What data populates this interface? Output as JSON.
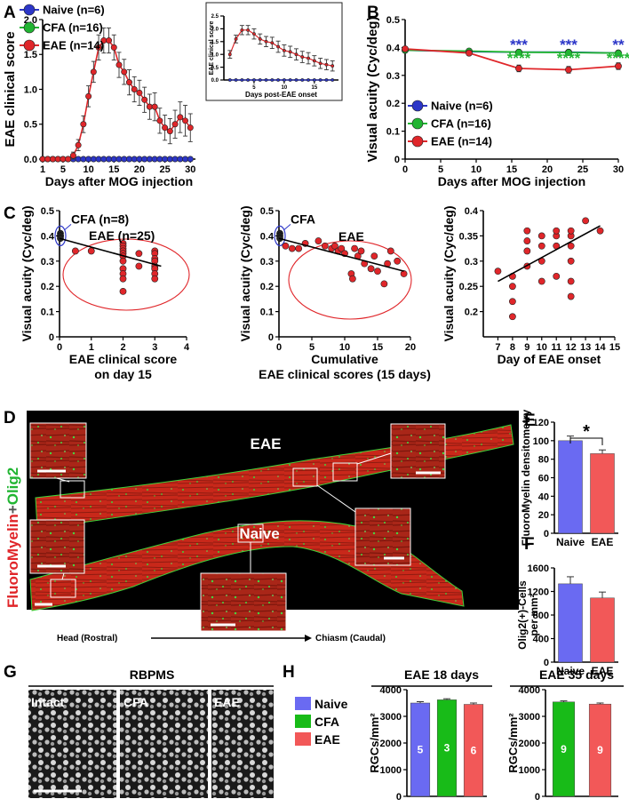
{
  "colors": {
    "naive": "#2c36c8",
    "cfa": "#21b532",
    "eae": "#e0262a",
    "bar_naive": "#6a6af2",
    "bar_cfa": "#18bb18",
    "bar_eae": "#f25858",
    "tissue_red": "#c8281a",
    "tissue_green": "#3fd13a"
  },
  "panel_letters": {
    "A": "A",
    "B": "B",
    "C": "C",
    "D": "D",
    "E": "E",
    "F": "F",
    "G": "G",
    "H": "H"
  },
  "chart_data": [
    {
      "id": "A",
      "type": "line",
      "title": "",
      "xlabel": "Days after MOG injection",
      "ylabel": "EAE clinical score",
      "xlim": [
        1,
        31
      ],
      "ylim": [
        0,
        2.0
      ],
      "xticks": [
        1,
        5,
        10,
        15,
        20,
        25,
        30
      ],
      "yticks": [
        0.0,
        0.5,
        1.0,
        1.5,
        2.0
      ],
      "ytick_labels": [
        "0.0",
        "0.5",
        "1.0",
        "1.5",
        "2.0"
      ],
      "legend": [
        {
          "name": "Naive (n=6)",
          "color": "naive"
        },
        {
          "name": "CFA (n=16)",
          "color": "cfa"
        },
        {
          "name": "EAE (n=14)",
          "color": "eae"
        }
      ],
      "x": [
        1,
        2,
        3,
        4,
        5,
        6,
        7,
        8,
        9,
        10,
        11,
        12,
        13,
        14,
        15,
        16,
        17,
        18,
        19,
        20,
        21,
        22,
        23,
        24,
        25,
        26,
        27,
        28,
        29,
        30
      ],
      "series": [
        {
          "name": "Naive",
          "color": "naive",
          "values": [
            0,
            0,
            0,
            0,
            0,
            0,
            0,
            0,
            0,
            0,
            0,
            0,
            0,
            0,
            0,
            0,
            0,
            0,
            0,
            0,
            0,
            0,
            0,
            0,
            0,
            0,
            0,
            0,
            0,
            0
          ],
          "err": []
        },
        {
          "name": "EAE",
          "color": "eae",
          "values": [
            0,
            0,
            0,
            0,
            0,
            0,
            0.05,
            0.2,
            0.5,
            0.9,
            1.25,
            1.6,
            1.7,
            1.7,
            1.6,
            1.35,
            1.25,
            1.1,
            1.0,
            0.95,
            0.85,
            0.75,
            0.75,
            0.55,
            0.45,
            0.4,
            0.5,
            0.6,
            0.55,
            0.45
          ],
          "err": [
            0,
            0,
            0,
            0,
            0,
            0,
            0.05,
            0.08,
            0.12,
            0.15,
            0.15,
            0.18,
            0.18,
            0.18,
            0.18,
            0.18,
            0.18,
            0.18,
            0.18,
            0.18,
            0.18,
            0.18,
            0.2,
            0.18,
            0.18,
            0.18,
            0.2,
            0.22,
            0.22,
            0.2
          ]
        }
      ]
    },
    {
      "id": "A_inset",
      "type": "line",
      "title": "",
      "xlabel": "Days post-EAE onset",
      "ylabel": "EAE clinical score",
      "xlim": [
        0,
        19
      ],
      "ylim": [
        0,
        2.5
      ],
      "xticks": [
        5,
        10,
        15
      ],
      "yticks": [
        0.0,
        0.5,
        1.0,
        1.5,
        2.0,
        2.5
      ],
      "ytick_labels": [
        "0.0",
        "0.5",
        "1.0",
        "1.5",
        "2.0",
        "2.5"
      ],
      "x": [
        1,
        2,
        3,
        4,
        5,
        6,
        7,
        8,
        9,
        10,
        11,
        12,
        13,
        14,
        15,
        16,
        17,
        18
      ],
      "series": [
        {
          "name": "Naive",
          "color": "naive",
          "values": [
            0,
            0,
            0,
            0,
            0,
            0,
            0,
            0,
            0,
            0,
            0,
            0,
            0,
            0,
            0,
            0,
            0,
            0
          ],
          "err": []
        },
        {
          "name": "EAE",
          "color": "eae",
          "values": [
            1.0,
            1.6,
            1.95,
            1.95,
            1.8,
            1.6,
            1.5,
            1.45,
            1.3,
            1.15,
            1.1,
            1.0,
            0.9,
            0.85,
            0.75,
            0.65,
            0.6,
            0.55
          ],
          "err": [
            0.15,
            0.15,
            0.18,
            0.18,
            0.2,
            0.2,
            0.2,
            0.22,
            0.22,
            0.22,
            0.22,
            0.22,
            0.22,
            0.22,
            0.2,
            0.2,
            0.2,
            0.2
          ]
        }
      ]
    },
    {
      "id": "B",
      "type": "line",
      "title": "",
      "xlabel": "Days after MOG injection",
      "ylabel": "Visual acuity (Cyc/deg)",
      "xlim": [
        0,
        30
      ],
      "ylim": [
        0,
        0.5
      ],
      "xticks": [
        0,
        5,
        10,
        15,
        20,
        25,
        30
      ],
      "yticks": [
        0.0,
        0.1,
        0.2,
        0.3,
        0.4,
        0.5
      ],
      "ytick_labels": [
        "0",
        "0.1",
        "0.2",
        "0.3",
        "0.4",
        "0.5"
      ],
      "legend": [
        {
          "name": "Naive (n=6)",
          "color": "naive"
        },
        {
          "name": "CFA (n=16)",
          "color": "cfa"
        },
        {
          "name": "EAE (n=14)",
          "color": "eae"
        }
      ],
      "x": [
        0,
        9,
        16,
        23,
        30
      ],
      "series": [
        {
          "name": "Naive",
          "color": "naive",
          "values": [
            0.39,
            0.385,
            0.383,
            0.383,
            0.38
          ],
          "err": []
        },
        {
          "name": "CFA",
          "color": "cfa",
          "values": [
            0.39,
            0.387,
            0.383,
            0.382,
            0.38
          ],
          "err": []
        },
        {
          "name": "EAE",
          "color": "eae",
          "values": [
            0.395,
            0.38,
            0.325,
            0.32,
            0.333
          ],
          "err": [
            0.005,
            0.005,
            0.012,
            0.012,
            0.012
          ]
        }
      ],
      "annotations": [
        {
          "x": 16,
          "text": "***",
          "color": "naive",
          "row": 1
        },
        {
          "x": 16,
          "text": "****",
          "color": "cfa",
          "row": 2
        },
        {
          "x": 23,
          "text": "***",
          "color": "naive",
          "row": 1
        },
        {
          "x": 23,
          "text": "****",
          "color": "cfa",
          "row": 2
        },
        {
          "x": 30,
          "text": "**",
          "color": "naive",
          "row": 1
        },
        {
          "x": 30,
          "text": "****",
          "color": "cfa",
          "row": 2
        }
      ]
    },
    {
      "id": "C1",
      "type": "scatter",
      "title": "",
      "xlabel": "EAE clinical score",
      "xlabel2": "on day 15",
      "ylabel": "Visual acuity (Cyc/deg)",
      "xlim": [
        0,
        4
      ],
      "ylim": [
        0,
        0.5
      ],
      "xticks": [
        0,
        1,
        2,
        3,
        4
      ],
      "yticks": [
        0.0,
        0.1,
        0.2,
        0.3,
        0.4,
        0.5
      ],
      "ytick_labels": [
        "0",
        "0.1",
        "0.2",
        "0.3",
        "0.4",
        "0.5"
      ],
      "points": [
        [
          0.5,
          0.34
        ],
        [
          1.0,
          0.34
        ],
        [
          2.0,
          0.37
        ],
        [
          2.0,
          0.36
        ],
        [
          2.0,
          0.35
        ],
        [
          2.0,
          0.34
        ],
        [
          2.0,
          0.33
        ],
        [
          2.0,
          0.32
        ],
        [
          2.0,
          0.3
        ],
        [
          2.0,
          0.27
        ],
        [
          2.0,
          0.25
        ],
        [
          2.0,
          0.23
        ],
        [
          2.0,
          0.18
        ],
        [
          2.5,
          0.33
        ],
        [
          2.5,
          0.28
        ],
        [
          3.0,
          0.34
        ],
        [
          3.0,
          0.33
        ],
        [
          3.0,
          0.31
        ],
        [
          3.0,
          0.3
        ],
        [
          3.0,
          0.28
        ],
        [
          3.0,
          0.27
        ],
        [
          3.0,
          0.25
        ],
        [
          3.0,
          0.23
        ]
      ],
      "cfa_points": [
        [
          0,
          0.41
        ],
        [
          0,
          0.4
        ],
        [
          0,
          0.4
        ],
        [
          0,
          0.39
        ]
      ],
      "trend": [
        [
          0,
          0.39
        ],
        [
          3.2,
          0.28
        ]
      ],
      "labels": {
        "cfa": "CFA (n=8)",
        "eae": "EAE (n=25)"
      }
    },
    {
      "id": "C2",
      "type": "scatter",
      "title": "",
      "xlabel": "Cumulative",
      "xlabel2": "EAE clinical scores (15 days)",
      "ylabel": "Visual acuity (Cyc/deg)",
      "xlim": [
        0,
        20
      ],
      "ylim": [
        0,
        0.5
      ],
      "xticks": [
        0,
        5,
        10,
        15,
        20
      ],
      "yticks": [
        0.0,
        0.1,
        0.2,
        0.3,
        0.4,
        0.5
      ],
      "ytick_labels": [
        "0",
        "0.1",
        "0.2",
        "0.3",
        "0.4",
        "0.5"
      ],
      "points": [
        [
          1,
          0.36
        ],
        [
          2,
          0.35
        ],
        [
          3,
          0.35
        ],
        [
          4,
          0.37
        ],
        [
          6,
          0.38
        ],
        [
          7,
          0.36
        ],
        [
          8,
          0.35
        ],
        [
          8.5,
          0.36
        ],
        [
          9,
          0.34
        ],
        [
          9.5,
          0.35
        ],
        [
          10,
          0.33
        ],
        [
          11,
          0.25
        ],
        [
          11.2,
          0.23
        ],
        [
          11.5,
          0.35
        ],
        [
          12,
          0.32
        ],
        [
          12.5,
          0.34
        ],
        [
          13,
          0.29
        ],
        [
          14,
          0.27
        ],
        [
          14.5,
          0.32
        ],
        [
          15,
          0.26
        ],
        [
          16,
          0.21
        ],
        [
          16.5,
          0.29
        ],
        [
          17,
          0.34
        ],
        [
          18,
          0.3
        ],
        [
          19,
          0.25
        ]
      ],
      "cfa_points": [
        [
          0,
          0.41
        ],
        [
          0,
          0.4
        ],
        [
          0,
          0.39
        ]
      ],
      "trend": [
        [
          0,
          0.39
        ],
        [
          19,
          0.26
        ]
      ],
      "labels": {
        "cfa": "CFA",
        "eae": "EAE"
      }
    },
    {
      "id": "C3",
      "type": "scatter",
      "title": "",
      "xlabel": "Day of EAE onset",
      "ylabel": "Visual acuity (Cyc/deg)",
      "xlim": [
        6,
        15
      ],
      "ylim": [
        0.15,
        0.4
      ],
      "xticks": [
        7,
        8,
        9,
        10,
        11,
        12,
        13,
        14,
        15
      ],
      "yticks": [
        0.2,
        0.25,
        0.3,
        0.35,
        0.4
      ],
      "ytick_labels": [
        "0.2",
        "0.25",
        "0.3",
        "0.35",
        "0.4"
      ],
      "points": [
        [
          7,
          0.28
        ],
        [
          8,
          0.25
        ],
        [
          8,
          0.22
        ],
        [
          8,
          0.19
        ],
        [
          8,
          0.27
        ],
        [
          9,
          0.34
        ],
        [
          9,
          0.32
        ],
        [
          9,
          0.36
        ],
        [
          9,
          0.29
        ],
        [
          10,
          0.35
        ],
        [
          10,
          0.33
        ],
        [
          10,
          0.3
        ],
        [
          10,
          0.26
        ],
        [
          11,
          0.35
        ],
        [
          11,
          0.36
        ],
        [
          11,
          0.33
        ],
        [
          11,
          0.27
        ],
        [
          12,
          0.33
        ],
        [
          12,
          0.35
        ],
        [
          12,
          0.36
        ],
        [
          12,
          0.3
        ],
        [
          12,
          0.26
        ],
        [
          12,
          0.23
        ],
        [
          13,
          0.38
        ],
        [
          14,
          0.36
        ]
      ],
      "trend": [
        [
          7,
          0.26
        ],
        [
          14,
          0.37
        ]
      ]
    },
    {
      "id": "E",
      "type": "bar",
      "title": "",
      "ylabel": "FluoroMyelin densitometry",
      "categories": [
        "Naive",
        "EAE"
      ],
      "values": [
        100,
        86
      ],
      "err": [
        5,
        4
      ],
      "colors": [
        "bar_naive",
        "bar_eae"
      ],
      "ylim": [
        0,
        120
      ],
      "yticks": [
        0,
        20,
        40,
        60,
        80,
        100,
        120
      ],
      "sig": "*"
    },
    {
      "id": "F",
      "type": "bar",
      "title": "",
      "ylabel": "Olig2(+)-Cells",
      "ylabel2": "per mm²",
      "categories": [
        "Naive",
        "EAE"
      ],
      "values": [
        1330,
        1090
      ],
      "err": [
        120,
        100
      ],
      "colors": [
        "bar_naive",
        "bar_eae"
      ],
      "ylim": [
        0,
        1600
      ],
      "yticks": [
        0,
        400,
        800,
        1200,
        1600
      ]
    },
    {
      "id": "H1",
      "type": "bar",
      "title": "EAE 18 days",
      "ylabel": "RGCs/mm²",
      "categories": [
        "Naive",
        "CFA",
        "EAE"
      ],
      "values": [
        3500,
        3620,
        3450
      ],
      "err": [
        50,
        40,
        50
      ],
      "n": [
        "5",
        "3",
        "6"
      ],
      "colors": [
        "bar_naive",
        "bar_cfa",
        "bar_eae"
      ],
      "ylim": [
        0,
        4000
      ],
      "yticks": [
        0,
        1000,
        2000,
        3000,
        4000
      ]
    },
    {
      "id": "H2",
      "type": "bar",
      "title": "EAE 35 days",
      "ylabel": "RGCs/mm²",
      "categories": [
        "CFA",
        "EAE"
      ],
      "values": [
        3540,
        3460
      ],
      "err": [
        40,
        40
      ],
      "n": [
        "9",
        "9"
      ],
      "colors": [
        "bar_cfa",
        "bar_eae"
      ],
      "ylim": [
        0,
        4000
      ],
      "yticks": [
        0,
        1000,
        2000,
        3000,
        4000
      ]
    }
  ],
  "panel_d": {
    "title_stain_1": "FluoroMyelin",
    "title_plus": "+",
    "title_stain_2": "Olig2",
    "label_eae": "EAE",
    "label_naive": "Naive",
    "axis_head": "Head (Rostral)",
    "axis_chiasm": "Chiasm (Caudal)"
  },
  "panel_g": {
    "title": "RBPMS",
    "tiles": [
      "Intact",
      "CFA",
      "EAE"
    ]
  },
  "panel_h": {
    "legend": [
      {
        "name": "Naive",
        "color": "bar_naive"
      },
      {
        "name": "CFA",
        "color": "bar_cfa"
      },
      {
        "name": "EAE",
        "color": "bar_eae"
      }
    ]
  }
}
